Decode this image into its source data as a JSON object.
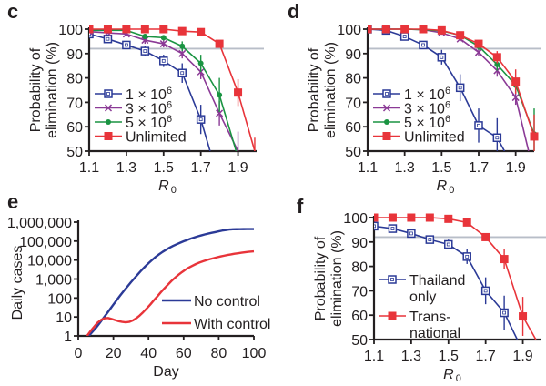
{
  "chart_data": [
    {
      "id": "c",
      "panel_label": "c",
      "type": "line",
      "xlabel": "R",
      "xlabel_sub": "0",
      "ylabel_line1": "Probability of",
      "ylabel_line2": "elimination (%)",
      "xlim": [
        1.1,
        2.0
      ],
      "ylim": [
        50,
        100
      ],
      "xticks": [
        1.1,
        1.3,
        1.5,
        1.7,
        1.9
      ],
      "xtick_labels": [
        "1.1",
        "1.3",
        "1.5",
        "1.7",
        "1.9"
      ],
      "yticks": [
        50,
        60,
        70,
        80,
        90,
        100
      ],
      "ytick_labels": [
        "50",
        "60",
        "70",
        "80",
        "90",
        "100"
      ],
      "reference_line_y": 92,
      "legend_position": "bottom-left",
      "series": [
        {
          "name": "1 × 10⁶",
          "label_base": "1 × 10",
          "label_exp": "6",
          "color": "#2b3a97",
          "marker": "open-square",
          "x": [
            1.1,
            1.2,
            1.3,
            1.4,
            1.5,
            1.6,
            1.7,
            1.75
          ],
          "y": [
            98,
            96,
            93.5,
            91,
            87,
            82,
            63,
            50
          ],
          "err": [
            1,
            1.5,
            1.5,
            2,
            2.5,
            4,
            6,
            0
          ]
        },
        {
          "name": "3 × 10⁶",
          "label_base": "3 × 10",
          "label_exp": "6",
          "color": "#8b3a96",
          "marker": "x",
          "x": [
            1.1,
            1.2,
            1.3,
            1.4,
            1.5,
            1.6,
            1.7,
            1.8,
            1.9
          ],
          "y": [
            99,
            98.5,
            98,
            95.5,
            94,
            90,
            82.5,
            65.5,
            50
          ],
          "err": [
            0.5,
            0.5,
            0.8,
            1.5,
            1.5,
            2,
            3,
            5,
            8
          ]
        },
        {
          "name": "5 × 10⁶",
          "label_base": "5 × 10",
          "label_exp": "6",
          "color": "#1a9442",
          "marker": "dot",
          "x": [
            1.1,
            1.2,
            1.3,
            1.4,
            1.5,
            1.6,
            1.7,
            1.8,
            1.89
          ],
          "y": [
            99.5,
            99.5,
            99.5,
            97,
            96.5,
            93,
            86,
            73,
            50
          ],
          "err": [
            0.3,
            0.3,
            0.3,
            1,
            1,
            2,
            3.5,
            7,
            0
          ]
        },
        {
          "name": "Unlimited",
          "label_base": "Unlimited",
          "label_exp": "",
          "color": "#e8343a",
          "marker": "filled-square",
          "x": [
            1.1,
            1.2,
            1.3,
            1.4,
            1.5,
            1.6,
            1.7,
            1.8,
            1.9,
            1.99
          ],
          "y": [
            100,
            100,
            100,
            100,
            100,
            99.2,
            98.8,
            94,
            74,
            50
          ],
          "err": [
            0,
            0,
            0,
            0,
            0,
            0.5,
            0.8,
            1.5,
            5.5,
            5.5
          ]
        }
      ]
    },
    {
      "id": "d",
      "panel_label": "d",
      "type": "line",
      "xlabel": "R",
      "xlabel_sub": "0",
      "ylabel_line1": "Probability of",
      "ylabel_line2": "elimination (%)",
      "xlim": [
        1.1,
        2.0
      ],
      "ylim": [
        50,
        100
      ],
      "xticks": [
        1.1,
        1.3,
        1.5,
        1.7,
        1.9
      ],
      "xtick_labels": [
        "1.1",
        "1.3",
        "1.5",
        "1.7",
        "1.9"
      ],
      "yticks": [
        50,
        60,
        70,
        80,
        90,
        100
      ],
      "ytick_labels": [
        "50",
        "60",
        "70",
        "80",
        "90",
        "100"
      ],
      "reference_line_y": 92,
      "legend_position": "bottom-left",
      "series": [
        {
          "name": "1 × 10⁶",
          "label_base": "1 × 10",
          "label_exp": "6",
          "color": "#2b3a97",
          "marker": "open-square",
          "x": [
            1.1,
            1.2,
            1.3,
            1.4,
            1.5,
            1.6,
            1.7,
            1.8,
            1.84
          ],
          "y": [
            100,
            99.5,
            97,
            93.5,
            88.5,
            76,
            60.5,
            55.5,
            50
          ],
          "err": [
            0,
            0.5,
            0.8,
            1.5,
            3,
            5.5,
            7,
            8,
            0
          ]
        },
        {
          "name": "3 × 10⁶",
          "label_base": "3 × 10",
          "label_exp": "6",
          "color": "#8b3a96",
          "marker": "x",
          "x": [
            1.1,
            1.2,
            1.3,
            1.4,
            1.5,
            1.6,
            1.7,
            1.8,
            1.9,
            1.97
          ],
          "y": [
            100,
            100,
            100,
            99.8,
            98.5,
            96,
            90.5,
            83,
            72,
            50
          ],
          "err": [
            0,
            0,
            0,
            0.3,
            0.8,
            1,
            1.5,
            2.5,
            3,
            0
          ]
        },
        {
          "name": "5 × 10⁶",
          "label_base": "5 × 10",
          "label_exp": "6",
          "color": "#1a9442",
          "marker": "dot",
          "x": [
            1.1,
            1.2,
            1.3,
            1.4,
            1.5,
            1.6,
            1.7,
            1.8,
            1.9,
            2.0
          ],
          "y": [
            100,
            100,
            100,
            99.8,
            99.3,
            97.5,
            93,
            85.5,
            77,
            57
          ],
          "err": [
            0,
            0,
            0,
            0.2,
            0.5,
            1,
            1.5,
            2.5,
            3,
            10.5
          ]
        },
        {
          "name": "Unlimited",
          "label_base": "Unlimited",
          "label_exp": "",
          "color": "#e8343a",
          "marker": "filled-square",
          "x": [
            1.1,
            1.2,
            1.3,
            1.4,
            1.5,
            1.6,
            1.7,
            1.8,
            1.9,
            2.0
          ],
          "y": [
            100,
            100,
            100,
            100,
            99.5,
            97.5,
            94,
            88.5,
            78.5,
            56
          ],
          "err": [
            0,
            0,
            0,
            0,
            0.5,
            1,
            1.5,
            2.5,
            5,
            9
          ]
        }
      ]
    },
    {
      "id": "e",
      "panel_label": "e",
      "type": "line",
      "xlabel": "Day",
      "ylabel": "Daily cases",
      "yscale": "log",
      "xlim": [
        0,
        100
      ],
      "ylim": [
        1,
        1000000
      ],
      "xticks": [
        0,
        20,
        40,
        60,
        80,
        100
      ],
      "xtick_labels": [
        "0",
        "20",
        "40",
        "60",
        "80",
        "100"
      ],
      "yticks": [
        1,
        10,
        100,
        1000,
        10000,
        100000,
        1000000
      ],
      "ytick_labels": [
        "1",
        "10",
        "100",
        "1,000",
        "10,000",
        "100,000",
        "1,000,000"
      ],
      "legend_position": "bottom-right",
      "series": [
        {
          "name": "No control",
          "color": "#2b3a97",
          "x": [
            6,
            8,
            10,
            12,
            14,
            16,
            18,
            20,
            22,
            24,
            26,
            28,
            30,
            32,
            34,
            36,
            38,
            40,
            42,
            44,
            46,
            48,
            50,
            52,
            54,
            56,
            58,
            60,
            62,
            64,
            66,
            68,
            70,
            72,
            74,
            76,
            78,
            80,
            82,
            84,
            86,
            88,
            90,
            92,
            94,
            96,
            98,
            100
          ],
          "y": [
            1,
            1.6,
            2.6,
            4.5,
            8,
            14,
            25,
            45,
            80,
            140,
            240,
            400,
            680,
            1100,
            1800,
            2900,
            4500,
            6800,
            10000,
            14500,
            20000,
            27000,
            35000,
            45000,
            56000,
            68000,
            82000,
            98000,
            115000,
            135000,
            155000,
            178000,
            200000,
            225000,
            250000,
            275000,
            300000,
            330000,
            360000,
            385000,
            410000,
            420000,
            425000,
            428000,
            430000,
            432000,
            433000,
            434000
          ]
        },
        {
          "name": "With control",
          "color": "#e8343a",
          "x": [
            5,
            7,
            9,
            11,
            13,
            15,
            17,
            19,
            21,
            23,
            25,
            27,
            29,
            31,
            33,
            35,
            37,
            39,
            41,
            43,
            45,
            47,
            49,
            51,
            53,
            55,
            57,
            59,
            61,
            63,
            65,
            67,
            69,
            71,
            73,
            75,
            77,
            79,
            81,
            83,
            85,
            87,
            89,
            91,
            93,
            95,
            97,
            100
          ],
          "y": [
            1,
            1.8,
            3,
            5,
            7,
            8.5,
            8.8,
            7.8,
            6.8,
            6,
            5.5,
            5.2,
            5.5,
            6.5,
            8.5,
            12,
            18,
            28,
            45,
            75,
            120,
            200,
            320,
            500,
            780,
            1150,
            1650,
            2300,
            3100,
            4000,
            5000,
            6200,
            7400,
            8600,
            9900,
            11200,
            12500,
            14000,
            15500,
            17000,
            18500,
            20000,
            21500,
            23000,
            24500,
            26000,
            27500,
            29000
          ]
        }
      ]
    },
    {
      "id": "f",
      "panel_label": "f",
      "type": "line",
      "xlabel": "R",
      "xlabel_sub": "0",
      "ylabel_line1": "Probability of",
      "ylabel_line2": "elimination (%)",
      "xlim": [
        1.1,
        2.0
      ],
      "ylim": [
        50,
        100
      ],
      "xticks": [
        1.1,
        1.3,
        1.5,
        1.7,
        1.9
      ],
      "xtick_labels": [
        "1.1",
        "1.3",
        "1.5",
        "1.7",
        "1.9"
      ],
      "yticks": [
        50,
        60,
        70,
        80,
        90,
        100
      ],
      "ytick_labels": [
        "50",
        "60",
        "70",
        "80",
        "90",
        "100"
      ],
      "reference_line_y": 92,
      "legend_position": "bottom-left",
      "series": [
        {
          "name": "Thailand only",
          "label_line1": "Thailand",
          "label_line2": "only",
          "color": "#2b3a97",
          "marker": "open-square",
          "x": [
            1.1,
            1.2,
            1.3,
            1.4,
            1.5,
            1.6,
            1.7,
            1.8,
            1.87
          ],
          "y": [
            96.5,
            95.5,
            93.5,
            91,
            89,
            84,
            70,
            61,
            50
          ],
          "err": [
            1,
            1.5,
            1,
            1.5,
            2,
            3,
            5.5,
            7,
            0
          ]
        },
        {
          "name": "Trans-national",
          "label_line1": "Trans-",
          "label_line2": "national",
          "color": "#e8343a",
          "marker": "filled-square",
          "x": [
            1.1,
            1.2,
            1.3,
            1.4,
            1.5,
            1.6,
            1.7,
            1.8,
            1.9,
            1.97
          ],
          "y": [
            100,
            100,
            100,
            100,
            99.5,
            98,
            92,
            83,
            59.5,
            50
          ],
          "err": [
            0,
            0,
            0,
            0,
            0.5,
            0.8,
            1.5,
            4,
            8,
            0
          ]
        }
      ]
    }
  ]
}
